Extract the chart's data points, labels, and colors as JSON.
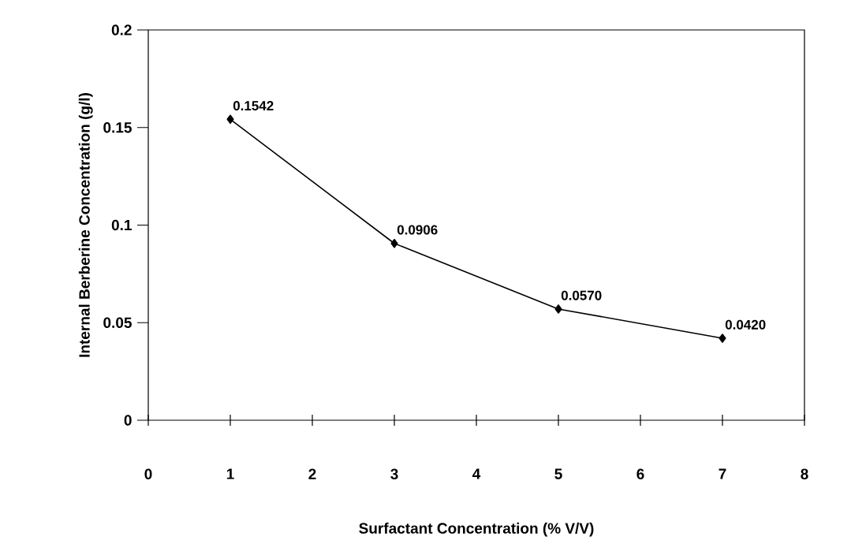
{
  "chart_data": {
    "type": "line",
    "xlabel": "Surfactant Concentration (% V/V)",
    "ylabel": "Internal Berberine Concentration  (g/l)",
    "x": [
      1,
      3,
      5,
      7
    ],
    "series": [
      {
        "color": "#000000",
        "values": [
          0.1542,
          0.0906,
          0.057,
          0.042
        ],
        "value_labels": [
          "0.1542",
          "0.0906",
          "0.0570",
          "0.0420"
        ]
      }
    ],
    "xlim": [
      0,
      8
    ],
    "xticks": [
      0,
      1,
      2,
      3,
      4,
      5,
      6,
      7,
      8
    ],
    "ylim": [
      0,
      0.2
    ],
    "yticks": [
      0,
      0.05,
      0.1,
      0.15,
      0.2
    ],
    "grid": false,
    "marker": "diamond",
    "line_style": "solid"
  }
}
